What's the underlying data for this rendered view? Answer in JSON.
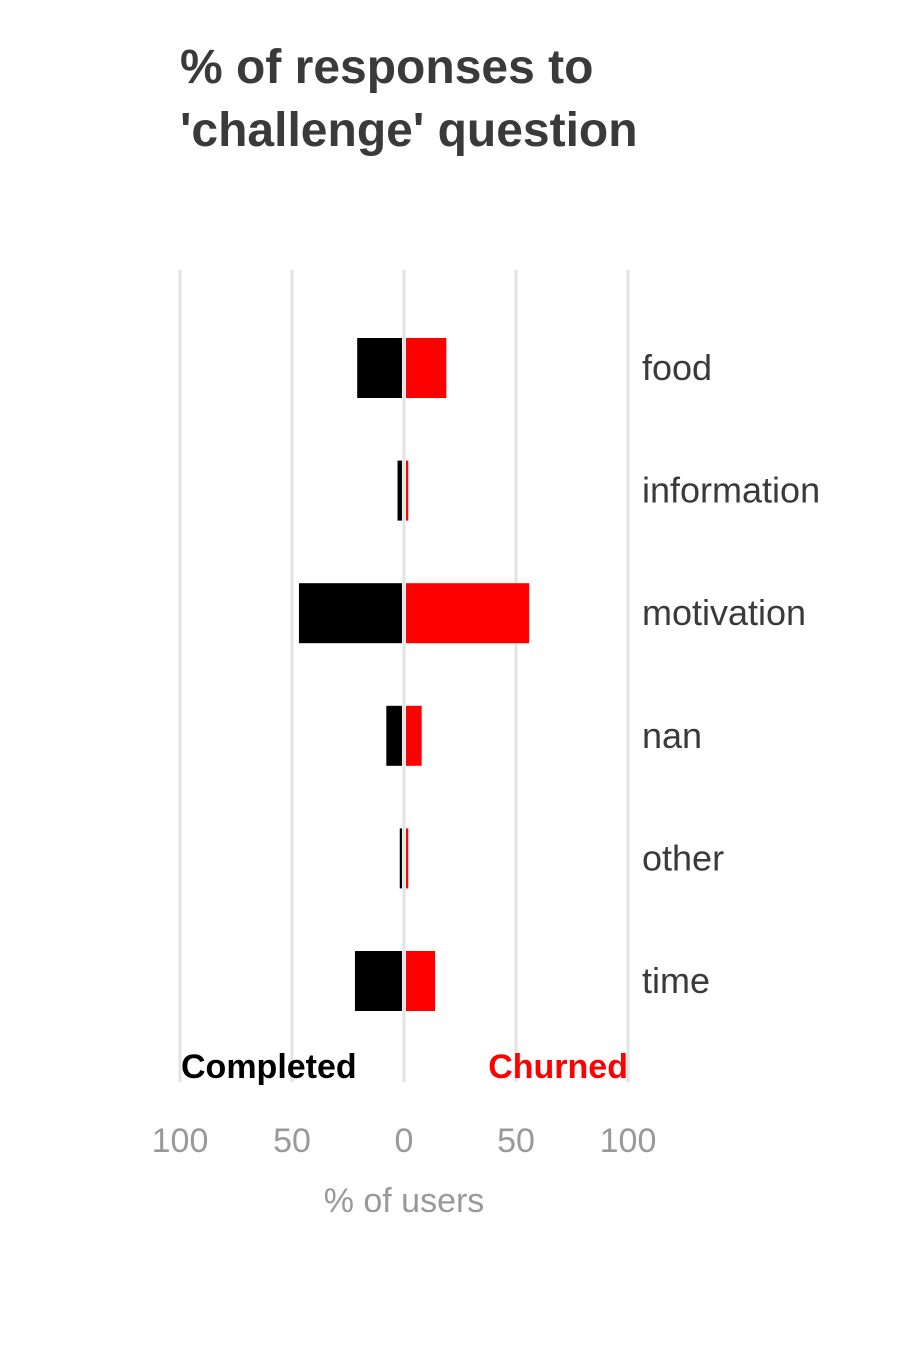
{
  "chart_data": {
    "type": "bar",
    "orientation": "horizontal-diverging",
    "title": [
      "% of responses to",
      "'challenge' question"
    ],
    "categories": [
      "food",
      "information",
      "motivation",
      "nan",
      "other",
      "time"
    ],
    "series": [
      {
        "name": "Completed",
        "side": "left",
        "color": "#000000",
        "values": [
          20,
          2,
          46,
          7,
          1,
          21
        ]
      },
      {
        "name": "Churned",
        "side": "right",
        "color": "#ff0000",
        "values": [
          18,
          1,
          55,
          7,
          1,
          13
        ]
      }
    ],
    "xlabel": "% of users",
    "xlim": [
      -100,
      100
    ],
    "xticks": [
      {
        "value": -100,
        "label": "100"
      },
      {
        "value": -50,
        "label": "50"
      },
      {
        "value": 0,
        "label": "0"
      },
      {
        "value": 50,
        "label": "50"
      },
      {
        "value": 100,
        "label": "100"
      }
    ],
    "grid": true
  }
}
